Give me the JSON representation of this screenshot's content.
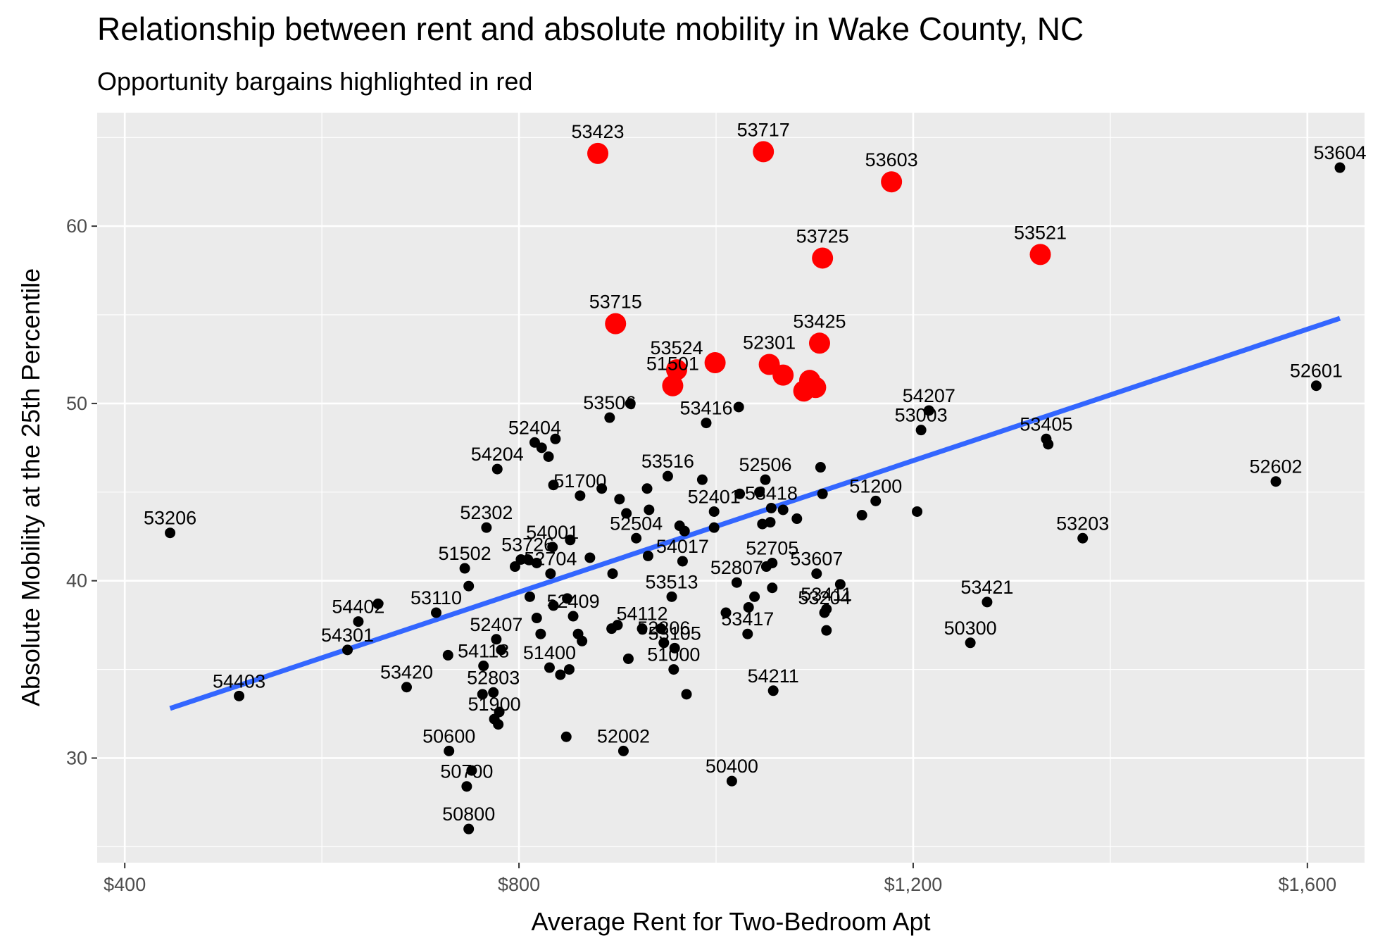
{
  "chart_data": {
    "type": "scatter",
    "title": "Relationship between rent and absolute mobility in Wake County, NC",
    "subtitle": "Opportunity bargains highlighted in red",
    "xlabel": "Average Rent for Two-Bedroom Apt",
    "ylabel": "Absolute Mobility at the 25th Percentile",
    "xlim": [
      372,
      1658
    ],
    "ylim": [
      24.1,
      66.4
    ],
    "x_ticks": [
      400,
      800,
      1200,
      1600
    ],
    "x_tick_labels": [
      "$400",
      "$800",
      "$1,200",
      "$1,600"
    ],
    "y_ticks": [
      30,
      40,
      50,
      60
    ],
    "y_tick_labels": [
      "30",
      "40",
      "50",
      "60"
    ],
    "grid": true,
    "colors": {
      "panel": "#ebebeb",
      "grid": "#ffffff",
      "point": "#000000",
      "highlight": "#ff0000",
      "trend": "#3366ff"
    },
    "trend_line": {
      "x": [
        446,
        1633
      ],
      "y": [
        32.8,
        54.8
      ]
    },
    "highlighted": [
      {
        "x": 880,
        "y": 64.1,
        "label": "53423"
      },
      {
        "x": 1048,
        "y": 64.2,
        "label": "53717"
      },
      {
        "x": 1178,
        "y": 62.5,
        "label": "53603"
      },
      {
        "x": 1108,
        "y": 58.2,
        "label": "53725"
      },
      {
        "x": 1329,
        "y": 58.4,
        "label": "53521"
      },
      {
        "x": 898,
        "y": 54.5,
        "label": "53715"
      },
      {
        "x": 1105,
        "y": 53.4,
        "label": "53425"
      },
      {
        "x": 960,
        "y": 51.9,
        "label": "53524"
      },
      {
        "x": 999,
        "y": 52.3,
        "label": ""
      },
      {
        "x": 1054,
        "y": 52.2,
        "label": "52301"
      },
      {
        "x": 1068,
        "y": 51.6,
        "label": ""
      },
      {
        "x": 956,
        "y": 51.0,
        "label": "51501"
      },
      {
        "x": 1095,
        "y": 51.3,
        "label": ""
      },
      {
        "x": 1101,
        "y": 50.9,
        "label": ""
      },
      {
        "x": 1089,
        "y": 50.7,
        "label": ""
      }
    ],
    "points": [
      {
        "x": 446,
        "y": 42.7,
        "label": "53206"
      },
      {
        "x": 516,
        "y": 33.5,
        "label": "54403"
      },
      {
        "x": 626,
        "y": 36.1,
        "label": "54301"
      },
      {
        "x": 637,
        "y": 37.7,
        "label": "54402"
      },
      {
        "x": 657,
        "y": 38.7,
        "label": ""
      },
      {
        "x": 686,
        "y": 34.0,
        "label": "53420"
      },
      {
        "x": 716,
        "y": 38.2,
        "label": "53110"
      },
      {
        "x": 728,
        "y": 35.8,
        "label": ""
      },
      {
        "x": 729,
        "y": 30.4,
        "label": "50600"
      },
      {
        "x": 745,
        "y": 40.7,
        "label": "51502"
      },
      {
        "x": 749,
        "y": 39.7,
        "label": ""
      },
      {
        "x": 747,
        "y": 28.4,
        "label": "50700"
      },
      {
        "x": 752,
        "y": 29.3,
        "label": ""
      },
      {
        "x": 749,
        "y": 26.0,
        "label": "50800"
      },
      {
        "x": 763,
        "y": 33.6,
        "label": ""
      },
      {
        "x": 764,
        "y": 35.2,
        "label": "54118"
      },
      {
        "x": 767,
        "y": 43.0,
        "label": "52302"
      },
      {
        "x": 774,
        "y": 33.7,
        "label": "52803"
      },
      {
        "x": 775,
        "y": 32.2,
        "label": "51900"
      },
      {
        "x": 777,
        "y": 36.7,
        "label": "52407"
      },
      {
        "x": 778,
        "y": 46.3,
        "label": "54204"
      },
      {
        "x": 779,
        "y": 31.9,
        "label": ""
      },
      {
        "x": 780,
        "y": 32.6,
        "label": ""
      },
      {
        "x": 782,
        "y": 36.1,
        "label": ""
      },
      {
        "x": 796,
        "y": 40.8,
        "label": ""
      },
      {
        "x": 802,
        "y": 41.2,
        "label": ""
      },
      {
        "x": 809,
        "y": 41.2,
        "label": "53726"
      },
      {
        "x": 811,
        "y": 39.1,
        "label": ""
      },
      {
        "x": 816,
        "y": 47.8,
        "label": "52404"
      },
      {
        "x": 818,
        "y": 41.0,
        "label": ""
      },
      {
        "x": 818,
        "y": 37.9,
        "label": ""
      },
      {
        "x": 822,
        "y": 37.0,
        "label": ""
      },
      {
        "x": 823,
        "y": 47.5,
        "label": ""
      },
      {
        "x": 830,
        "y": 47.0,
        "label": ""
      },
      {
        "x": 831,
        "y": 35.1,
        "label": "51400"
      },
      {
        "x": 832,
        "y": 40.4,
        "label": "52704"
      },
      {
        "x": 834,
        "y": 41.9,
        "label": "54001"
      },
      {
        "x": 835,
        "y": 38.6,
        "label": ""
      },
      {
        "x": 835,
        "y": 45.4,
        "label": ""
      },
      {
        "x": 837,
        "y": 48.0,
        "label": ""
      },
      {
        "x": 842,
        "y": 34.7,
        "label": ""
      },
      {
        "x": 848,
        "y": 31.2,
        "label": ""
      },
      {
        "x": 849,
        "y": 39.0,
        "label": ""
      },
      {
        "x": 851,
        "y": 35.0,
        "label": ""
      },
      {
        "x": 852,
        "y": 42.3,
        "label": ""
      },
      {
        "x": 855,
        "y": 38.0,
        "label": "52409"
      },
      {
        "x": 860,
        "y": 37.0,
        "label": ""
      },
      {
        "x": 862,
        "y": 44.8,
        "label": "51700"
      },
      {
        "x": 864,
        "y": 36.6,
        "label": ""
      },
      {
        "x": 872,
        "y": 41.3,
        "label": ""
      },
      {
        "x": 884,
        "y": 45.2,
        "label": ""
      },
      {
        "x": 892,
        "y": 49.2,
        "label": "53506"
      },
      {
        "x": 894,
        "y": 37.3,
        "label": ""
      },
      {
        "x": 895,
        "y": 40.4,
        "label": ""
      },
      {
        "x": 900,
        "y": 37.5,
        "label": ""
      },
      {
        "x": 902,
        "y": 44.6,
        "label": ""
      },
      {
        "x": 906,
        "y": 30.4,
        "label": "52002"
      },
      {
        "x": 909,
        "y": 43.8,
        "label": ""
      },
      {
        "x": 911,
        "y": 35.6,
        "label": ""
      },
      {
        "x": 913,
        "y": 50.0,
        "label": ""
      },
      {
        "x": 919,
        "y": 42.4,
        "label": "52504"
      },
      {
        "x": 925,
        "y": 37.3,
        "label": "54112"
      },
      {
        "x": 930,
        "y": 45.2,
        "label": ""
      },
      {
        "x": 931,
        "y": 41.4,
        "label": ""
      },
      {
        "x": 932,
        "y": 44.0,
        "label": ""
      },
      {
        "x": 944,
        "y": 37.3,
        "label": ""
      },
      {
        "x": 947,
        "y": 36.5,
        "label": "52806"
      },
      {
        "x": 951,
        "y": 45.9,
        "label": "53516"
      },
      {
        "x": 955,
        "y": 39.1,
        "label": "53513"
      },
      {
        "x": 957,
        "y": 35.0,
        "label": "51000"
      },
      {
        "x": 958,
        "y": 36.2,
        "label": "53105"
      },
      {
        "x": 963,
        "y": 43.1,
        "label": ""
      },
      {
        "x": 966,
        "y": 41.1,
        "label": "54017"
      },
      {
        "x": 968,
        "y": 42.8,
        "label": ""
      },
      {
        "x": 970,
        "y": 33.6,
        "label": ""
      },
      {
        "x": 986,
        "y": 45.7,
        "label": ""
      },
      {
        "x": 990,
        "y": 48.9,
        "label": "53416"
      },
      {
        "x": 998,
        "y": 43.9,
        "label": "52401"
      },
      {
        "x": 998,
        "y": 43.0,
        "label": ""
      },
      {
        "x": 1010,
        "y": 38.2,
        "label": ""
      },
      {
        "x": 1016,
        "y": 28.7,
        "label": "50400"
      },
      {
        "x": 1021,
        "y": 39.9,
        "label": "52807"
      },
      {
        "x": 1023,
        "y": 49.8,
        "label": ""
      },
      {
        "x": 1024,
        "y": 44.9,
        "label": ""
      },
      {
        "x": 1032,
        "y": 37.0,
        "label": "53417"
      },
      {
        "x": 1033,
        "y": 38.5,
        "label": ""
      },
      {
        "x": 1039,
        "y": 39.1,
        "label": ""
      },
      {
        "x": 1044,
        "y": 45.0,
        "label": ""
      },
      {
        "x": 1047,
        "y": 43.2,
        "label": ""
      },
      {
        "x": 1050,
        "y": 45.7,
        "label": "52506"
      },
      {
        "x": 1051,
        "y": 40.8,
        "label": ""
      },
      {
        "x": 1055,
        "y": 43.3,
        "label": ""
      },
      {
        "x": 1056,
        "y": 44.1,
        "label": "53418"
      },
      {
        "x": 1057,
        "y": 41.0,
        "label": "52705"
      },
      {
        "x": 1057,
        "y": 39.6,
        "label": ""
      },
      {
        "x": 1058,
        "y": 33.8,
        "label": "54211"
      },
      {
        "x": 1068,
        "y": 44.0,
        "label": ""
      },
      {
        "x": 1082,
        "y": 43.5,
        "label": ""
      },
      {
        "x": 1102,
        "y": 40.4,
        "label": "53607"
      },
      {
        "x": 1106,
        "y": 46.4,
        "label": ""
      },
      {
        "x": 1108,
        "y": 44.9,
        "label": ""
      },
      {
        "x": 1110,
        "y": 38.2,
        "label": "53204"
      },
      {
        "x": 1112,
        "y": 38.4,
        "label": "53411"
      },
      {
        "x": 1112,
        "y": 37.2,
        "label": ""
      },
      {
        "x": 1126,
        "y": 39.8,
        "label": ""
      },
      {
        "x": 1148,
        "y": 43.7,
        "label": ""
      },
      {
        "x": 1162,
        "y": 44.5,
        "label": "51200"
      },
      {
        "x": 1204,
        "y": 43.9,
        "label": ""
      },
      {
        "x": 1208,
        "y": 48.5,
        "label": "53003"
      },
      {
        "x": 1216,
        "y": 49.6,
        "label": "54207"
      },
      {
        "x": 1258,
        "y": 36.5,
        "label": "50300"
      },
      {
        "x": 1275,
        "y": 38.8,
        "label": "53421"
      },
      {
        "x": 1335,
        "y": 48.0,
        "label": "53405"
      },
      {
        "x": 1337,
        "y": 47.7,
        "label": ""
      },
      {
        "x": 1372,
        "y": 42.4,
        "label": "53203"
      },
      {
        "x": 1568,
        "y": 45.6,
        "label": "52602"
      },
      {
        "x": 1609,
        "y": 51.0,
        "label": "52601"
      },
      {
        "x": 1633,
        "y": 63.3,
        "label": "53604"
      }
    ]
  }
}
